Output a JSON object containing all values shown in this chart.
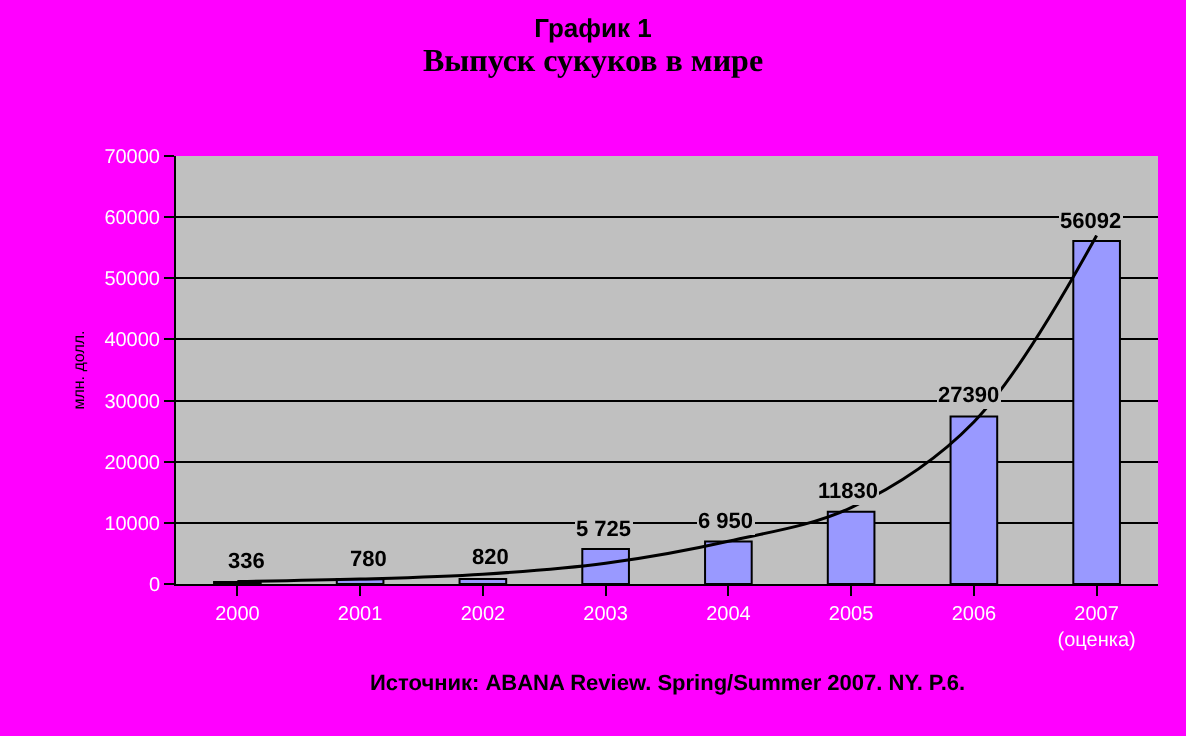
{
  "chart_data": {
    "type": "bar",
    "title": "График 1",
    "subtitle": "Выпуск сукуков в мире",
    "ylabel": "млн. долл.",
    "categories": [
      "2000",
      "2001",
      "2002",
      "2003",
      "2004",
      "2005",
      "2006",
      "2007\n(оценка)"
    ],
    "series": [
      {
        "color": "#9999ff",
        "values": [
          336,
          780,
          820,
          5725,
          6950,
          11830,
          27390,
          56092
        ],
        "value_labels": [
          "336",
          "780",
          "820",
          "5 725",
          "6 950",
          "11830",
          "27390",
          "56092"
        ]
      },
      {
        "type": "line",
        "color": "#000000",
        "values": [
          400,
          800,
          1600,
          3400,
          7000,
          12500,
          26500,
          57000
        ]
      }
    ],
    "ylim": [
      0,
      70000
    ],
    "yticks": [
      0,
      10000,
      20000,
      30000,
      40000,
      50000,
      60000,
      70000
    ],
    "grid": "y",
    "annotations": [
      "Источник: ABANA Review. Spring/Summer 2007. NY. P.6."
    ]
  }
}
